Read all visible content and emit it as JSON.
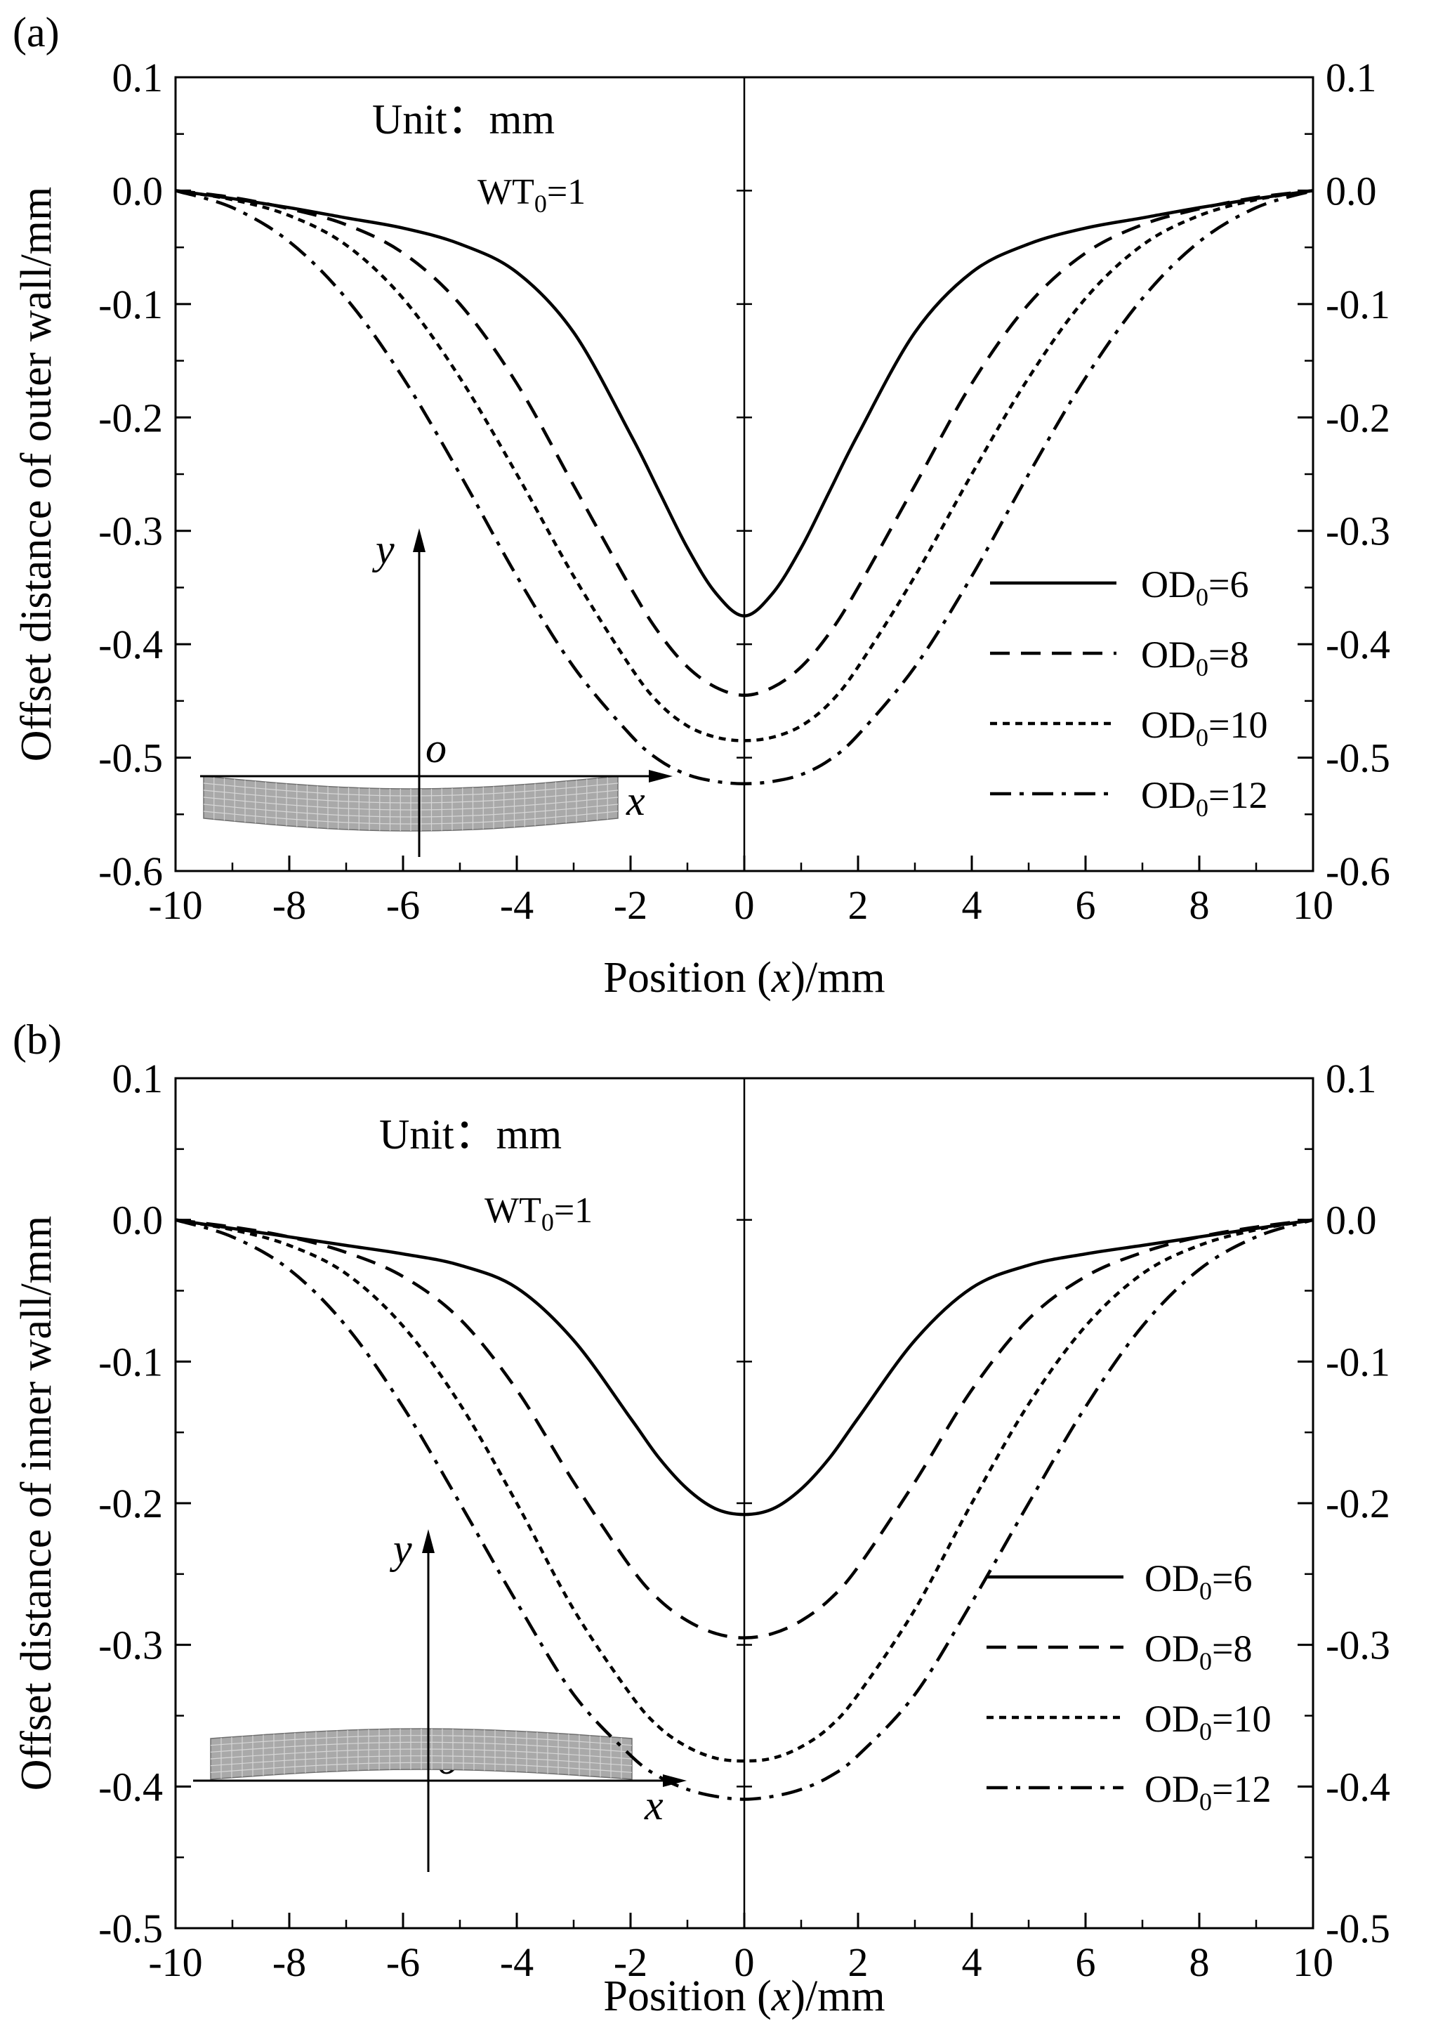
{
  "figure": {
    "panels": [
      "(a)",
      "(b)"
    ]
  },
  "chart_data": [
    {
      "type": "line",
      "panel_label": "(a)",
      "xlabel": "Position (x)/mm",
      "xlabel_pre": "Position (",
      "xlabel_var": "x",
      "xlabel_post": ")/mm",
      "ylabel": "Offset distance of outer wall/mm",
      "xlim": [
        -10,
        10
      ],
      "ylim": [
        -0.6,
        0.1
      ],
      "xticks": [
        -10,
        -8,
        -6,
        -4,
        -2,
        0,
        2,
        4,
        6,
        8,
        10
      ],
      "yticks": [
        0.1,
        0.0,
        -0.1,
        -0.2,
        -0.3,
        -0.4,
        -0.5,
        -0.6
      ],
      "xtick_labels": [
        "-10",
        "-8",
        "-6",
        "-4",
        "-2",
        "0",
        "2",
        "4",
        "6",
        "8",
        "10"
      ],
      "ytick_labels": [
        "0.1",
        "0.0",
        "-0.1",
        "-0.2",
        "-0.3",
        "-0.4",
        "-0.5",
        "-0.6"
      ],
      "annotation_unit": "Unit：mm",
      "annotation_wt": "WT",
      "annotation_wt_sub": "0",
      "annotation_wt_value": "=1",
      "inset_axis_y": "y",
      "inset_axis_x": "x",
      "inset_origin": "o",
      "x": [
        -10,
        -9,
        -8,
        -7,
        -6,
        -5,
        -4,
        -3,
        -2,
        -1.5,
        -1,
        -0.5,
        0,
        0.5,
        1,
        1.5,
        2,
        3,
        4,
        5,
        6,
        7,
        8,
        9,
        10
      ],
      "series": [
        {
          "name": "OD0=6",
          "label_base": "OD",
          "label_sub": "0",
          "label_value": "=6",
          "style": "solid",
          "values": [
            0,
            -0.007,
            -0.015,
            -0.024,
            -0.033,
            -0.047,
            -0.072,
            -0.125,
            -0.215,
            -0.265,
            -0.315,
            -0.355,
            -0.375,
            -0.355,
            -0.315,
            -0.265,
            -0.215,
            -0.125,
            -0.072,
            -0.047,
            -0.033,
            -0.024,
            -0.015,
            -0.007,
            0
          ]
        },
        {
          "name": "OD0=8",
          "label_base": "OD",
          "label_sub": "0",
          "label_value": "=8",
          "style": "dashed",
          "values": [
            0,
            -0.006,
            -0.016,
            -0.03,
            -0.055,
            -0.1,
            -0.17,
            -0.26,
            -0.35,
            -0.39,
            -0.42,
            -0.438,
            -0.445,
            -0.438,
            -0.42,
            -0.39,
            -0.35,
            -0.26,
            -0.17,
            -0.1,
            -0.055,
            -0.03,
            -0.016,
            -0.006,
            0
          ]
        },
        {
          "name": "OD0=10",
          "label_base": "OD",
          "label_sub": "0",
          "label_value": "=10",
          "style": "dotted",
          "values": [
            0,
            -0.008,
            -0.022,
            -0.048,
            -0.095,
            -0.165,
            -0.25,
            -0.34,
            -0.42,
            -0.452,
            -0.472,
            -0.482,
            -0.485,
            -0.482,
            -0.472,
            -0.452,
            -0.42,
            -0.34,
            -0.25,
            -0.165,
            -0.095,
            -0.048,
            -0.022,
            -0.008,
            0
          ]
        },
        {
          "name": "OD0=12",
          "label_base": "OD",
          "label_sub": "0",
          "label_value": "=12",
          "style": "dashdot",
          "values": [
            0,
            -0.015,
            -0.045,
            -0.095,
            -0.165,
            -0.25,
            -0.34,
            -0.42,
            -0.48,
            -0.502,
            -0.515,
            -0.521,
            -0.523,
            -0.521,
            -0.515,
            -0.502,
            -0.48,
            -0.42,
            -0.34,
            -0.25,
            -0.165,
            -0.095,
            -0.045,
            -0.015,
            0
          ]
        }
      ]
    },
    {
      "type": "line",
      "panel_label": "(b)",
      "xlabel": "Position (x)/mm",
      "xlabel_pre": "Position (",
      "xlabel_var": "x",
      "xlabel_post": ")/mm",
      "ylabel": "Offset distance of inner wall/mm",
      "xlim": [
        -10,
        10
      ],
      "ylim": [
        -0.5,
        0.1
      ],
      "xticks": [
        -10,
        -8,
        -6,
        -4,
        -2,
        0,
        2,
        4,
        6,
        8,
        10
      ],
      "yticks": [
        0.1,
        0.0,
        -0.1,
        -0.2,
        -0.3,
        -0.4,
        -0.5
      ],
      "xtick_labels": [
        "-10",
        "-8",
        "-6",
        "-4",
        "-2",
        "0",
        "2",
        "4",
        "6",
        "8",
        "10"
      ],
      "ytick_labels": [
        "0.1",
        "0.0",
        "-0.1",
        "-0.2",
        "-0.3",
        "-0.4",
        "-0.5"
      ],
      "annotation_unit": "Unit：mm",
      "annotation_wt": "WT",
      "annotation_wt_sub": "0",
      "annotation_wt_value": "=1",
      "inset_axis_y": "y",
      "inset_axis_x": "x",
      "inset_origin": "o",
      "x": [
        -10,
        -9,
        -8,
        -7,
        -6,
        -5,
        -4,
        -3,
        -2,
        -1.5,
        -1,
        -0.5,
        0,
        0.5,
        1,
        1.5,
        2,
        3,
        4,
        5,
        6,
        7,
        8,
        9,
        10
      ],
      "series": [
        {
          "name": "OD0=6",
          "label_base": "OD",
          "label_sub": "0",
          "label_value": "=6",
          "style": "solid",
          "values": [
            0,
            -0.006,
            -0.012,
            -0.018,
            -0.024,
            -0.032,
            -0.048,
            -0.085,
            -0.14,
            -0.168,
            -0.19,
            -0.204,
            -0.208,
            -0.204,
            -0.19,
            -0.168,
            -0.14,
            -0.085,
            -0.048,
            -0.032,
            -0.024,
            -0.018,
            -0.012,
            -0.006,
            0
          ]
        },
        {
          "name": "OD0=8",
          "label_base": "OD",
          "label_sub": "0",
          "label_value": "=8",
          "style": "dashed",
          "values": [
            0,
            -0.005,
            -0.012,
            -0.023,
            -0.04,
            -0.07,
            -0.12,
            -0.185,
            -0.245,
            -0.268,
            -0.283,
            -0.292,
            -0.295,
            -0.292,
            -0.283,
            -0.268,
            -0.245,
            -0.185,
            -0.12,
            -0.07,
            -0.04,
            -0.023,
            -0.012,
            -0.005,
            0
          ]
        },
        {
          "name": "OD0=10",
          "label_base": "OD",
          "label_sub": "0",
          "label_value": "=10",
          "style": "dotted",
          "values": [
            0,
            -0.007,
            -0.018,
            -0.038,
            -0.075,
            -0.13,
            -0.2,
            -0.275,
            -0.335,
            -0.358,
            -0.372,
            -0.38,
            -0.382,
            -0.38,
            -0.372,
            -0.358,
            -0.335,
            -0.275,
            -0.2,
            -0.13,
            -0.075,
            -0.038,
            -0.018,
            -0.007,
            0
          ]
        },
        {
          "name": "OD0=12",
          "label_base": "OD",
          "label_sub": "0",
          "label_value": "=12",
          "style": "dashdot",
          "values": [
            0,
            -0.012,
            -0.035,
            -0.075,
            -0.132,
            -0.2,
            -0.27,
            -0.335,
            -0.378,
            -0.393,
            -0.402,
            -0.407,
            -0.409,
            -0.407,
            -0.402,
            -0.393,
            -0.378,
            -0.335,
            -0.27,
            -0.2,
            -0.132,
            -0.075,
            -0.035,
            -0.012,
            0
          ]
        }
      ]
    }
  ]
}
